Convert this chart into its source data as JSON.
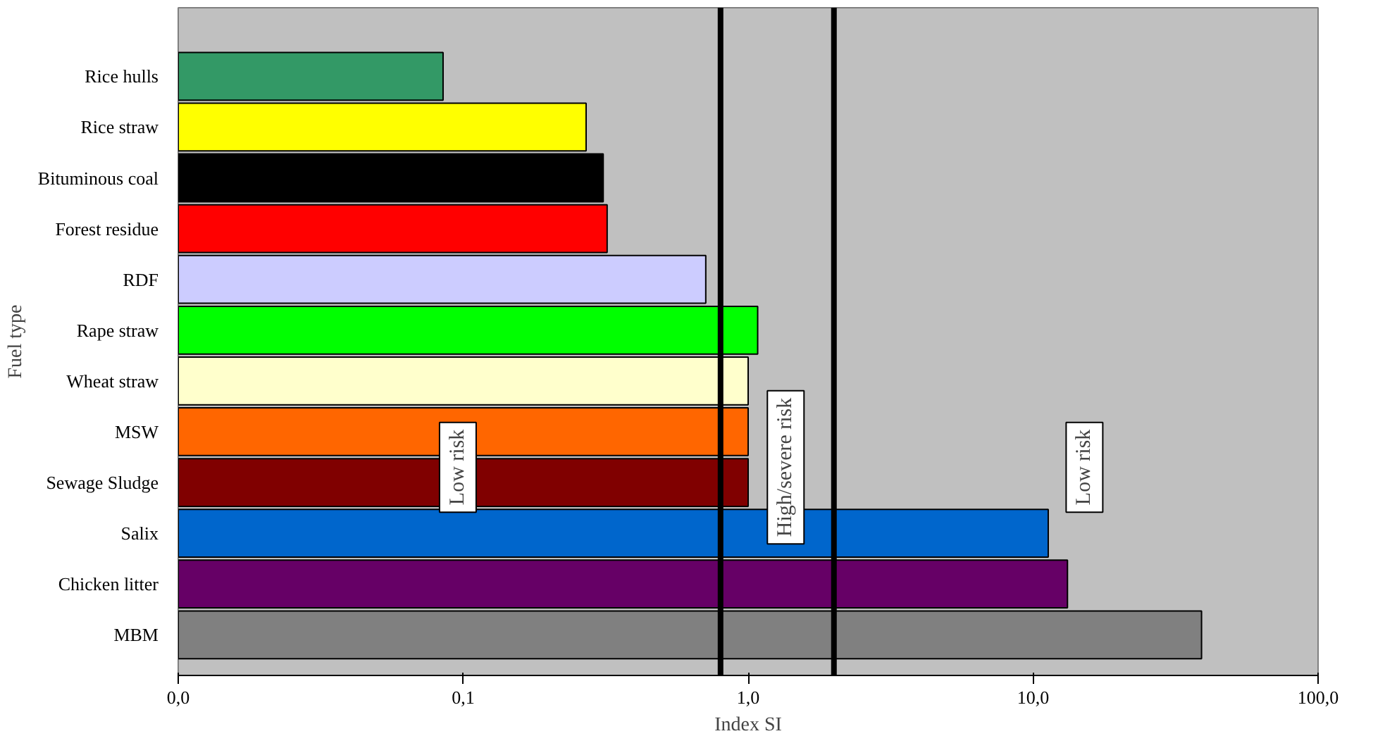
{
  "chart_data": {
    "type": "bar",
    "orientation": "horizontal",
    "xlabel": "Index SI",
    "ylabel": "Fuel type",
    "categories": [
      "Rice hulls",
      "Rice straw",
      "Bituminous coal",
      "Forest residue",
      "RDF",
      "Rape straw",
      "Wheat straw",
      "MSW",
      "Sewage Sludge",
      "Salix",
      "Chicken litter",
      "MBM"
    ],
    "values": [
      0.085,
      0.27,
      0.31,
      0.32,
      0.71,
      1.08,
      1.0,
      1.0,
      1.0,
      11.3,
      13.2,
      39
    ],
    "colors": [
      "#339966",
      "#ffff00",
      "#000000",
      "#ff0000",
      "#ccccff",
      "#00ff00",
      "#ffffcc",
      "#ff6600",
      "#800000",
      "#0066cc",
      "#660066",
      "#808080"
    ],
    "log": "x",
    "xlim": [
      0.01,
      100
    ],
    "xticks": [
      {
        "value": 0.01,
        "label": "0,0"
      },
      {
        "value": 0.1,
        "label": "0,1"
      },
      {
        "value": 1,
        "label": "1,0"
      },
      {
        "value": 10,
        "label": "10,0"
      },
      {
        "value": 100,
        "label": "100,0"
      }
    ],
    "grid": false,
    "ref_lines": [
      {
        "axis": "x",
        "value": 0.8,
        "color": "#000000"
      },
      {
        "axis": "x",
        "value": 2.0,
        "color": "#000000"
      }
    ],
    "annotations": [
      "Low risk",
      "High/severe risk",
      "Low risk"
    ]
  }
}
